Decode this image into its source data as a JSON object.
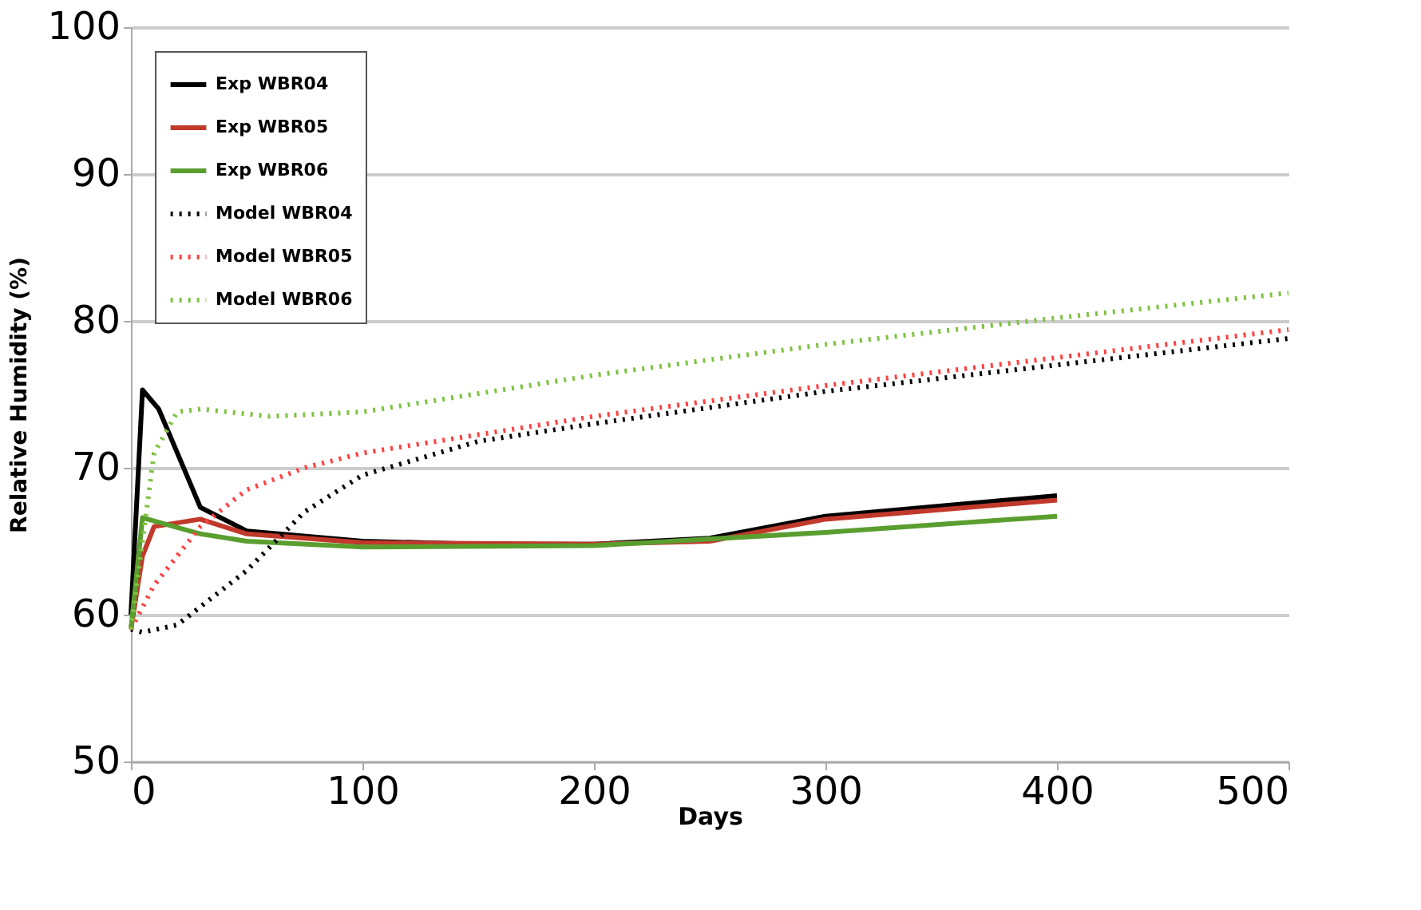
{
  "chart_data": {
    "type": "line",
    "xlabel": "Days",
    "ylabel": "Relative Humidity (%)",
    "xlim": [
      0,
      500
    ],
    "xticks": [
      0,
      100,
      200,
      300,
      400,
      500
    ],
    "ylim": [
      50,
      100
    ],
    "yticks": [
      50,
      60,
      70,
      80,
      90,
      100
    ],
    "grid": "y",
    "legend": "top left",
    "marker": "none",
    "series": [
      {
        "name": "Exp WBR04",
        "color": "#000000",
        "line_style": "solid",
        "x": [
          0,
          5,
          12,
          30,
          50,
          100,
          150,
          200,
          250,
          300,
          400
        ],
        "values": [
          60,
          75.3,
          74,
          67.3,
          65.7,
          65,
          64.8,
          64.8,
          65.2,
          66.7,
          68.1
        ]
      },
      {
        "name": "Exp WBR05",
        "color": "#c0392b",
        "line_style": "solid",
        "x": [
          0,
          5,
          10,
          30,
          50,
          100,
          200,
          250,
          300,
          400
        ],
        "values": [
          59,
          64,
          66,
          66.5,
          65.5,
          64.9,
          64.8,
          65,
          66.5,
          67.8
        ]
      },
      {
        "name": "Exp WBR06",
        "color": "#5a9e2f",
        "line_style": "solid",
        "x": [
          0,
          5,
          30,
          50,
          100,
          200,
          300,
          400
        ],
        "values": [
          59,
          66.6,
          65.5,
          65,
          64.6,
          64.7,
          65.6,
          66.7
        ]
      },
      {
        "name": "Model WBR04",
        "color": "#000000",
        "line_style": "dotted",
        "x": [
          0,
          5,
          20,
          50,
          75,
          100,
          150,
          200,
          300,
          400,
          500
        ],
        "values": [
          59,
          58.8,
          59.3,
          63,
          67,
          69.5,
          71.8,
          73,
          75.2,
          77,
          78.8
        ]
      },
      {
        "name": "Model WBR05",
        "color": "#ff4040",
        "line_style": "dotted",
        "x": [
          0,
          10,
          30,
          50,
          75,
          100,
          200,
          300,
          400,
          500
        ],
        "values": [
          59,
          62,
          66,
          68.5,
          70,
          71,
          73.5,
          75.6,
          77.5,
          79.4
        ]
      },
      {
        "name": "Model WBR06",
        "color": "#7fc241",
        "line_style": "dotted",
        "x": [
          0,
          5,
          10,
          20,
          30,
          60,
          100,
          200,
          300,
          400,
          500
        ],
        "values": [
          59,
          65,
          71,
          73.8,
          74,
          73.5,
          73.8,
          76.3,
          78.4,
          80.2,
          81.9
        ]
      }
    ]
  }
}
